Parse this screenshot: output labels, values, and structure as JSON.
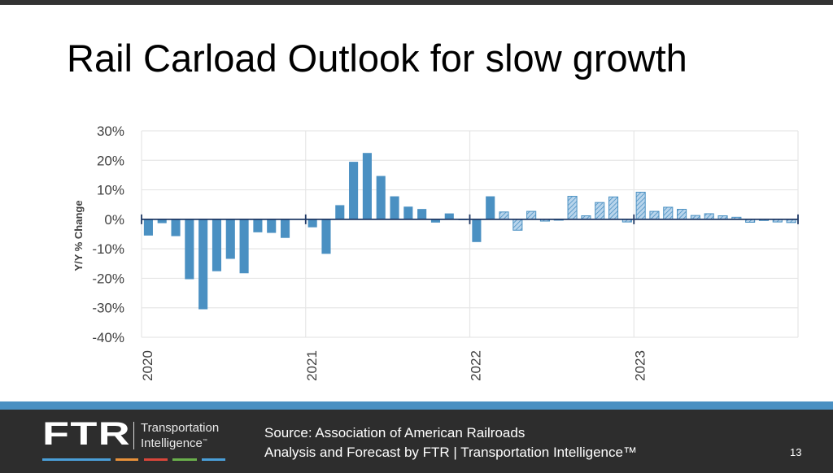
{
  "slide": {
    "title": "Rail Carload Outlook for slow growth",
    "page_number": "13"
  },
  "footer": {
    "logo_main": "FTR",
    "logo_line1": "Transportation",
    "logo_line2": "Intelligence",
    "logo_tm": "™",
    "source_line1": "Source: Association of American Railroads",
    "source_line2": "Analysis and Forecast by FTR | Transportation Intelligence™",
    "accent_colors": [
      "#4a9fd8",
      "#e8913a",
      "#d9463a",
      "#6ab04c",
      "#4a9fd8"
    ]
  },
  "colors": {
    "actual_bar": "#4a90c2",
    "forecast_fill": "#b9d5ec",
    "forecast_stripe": "#4a90c2",
    "axis_line": "#1f3864",
    "grid": "#e6e6e6",
    "tick_text": "#404040"
  },
  "chart_data": {
    "type": "bar",
    "title": "",
    "xlabel": "",
    "ylabel": "Y/Y % Change",
    "ylim": [
      -40,
      30
    ],
    "yticks": [
      30,
      20,
      10,
      0,
      -10,
      -20,
      -30,
      -40
    ],
    "ytick_labels": [
      "30%",
      "20%",
      "10%",
      "0%",
      "-10%",
      "-20%",
      "-30%",
      "-40%"
    ],
    "grid": true,
    "year_labels": [
      "2020",
      "2021",
      "2022",
      "2023"
    ],
    "periods_per_year": 12,
    "series": [
      {
        "name": "Y/Y % Change",
        "values": [
          -5.5,
          -1.3,
          -5.7,
          -20.3,
          -30.5,
          -17.6,
          -13.4,
          -18.3,
          -4.4,
          -4.6,
          -6.3,
          0,
          -2.7,
          -11.7,
          4.8,
          19.5,
          22.5,
          14.7,
          7.8,
          4.3,
          3.5,
          -1.1,
          2.0,
          -0.3,
          -7.7,
          7.8,
          2.5,
          -3.7,
          2.7,
          -0.6,
          -0.3,
          7.8,
          1.2,
          5.7,
          7.6,
          -0.9,
          9.2,
          2.7,
          4.1,
          3.4,
          1.3,
          1.9,
          1.2,
          0.7,
          -1.0,
          -0.4,
          -0.9,
          -1.1
        ],
        "forecast": [
          false,
          false,
          false,
          false,
          false,
          false,
          false,
          false,
          false,
          false,
          false,
          false,
          false,
          false,
          false,
          false,
          false,
          false,
          false,
          false,
          false,
          false,
          false,
          false,
          false,
          false,
          true,
          true,
          true,
          true,
          true,
          true,
          true,
          true,
          true,
          true,
          true,
          true,
          true,
          true,
          true,
          true,
          true,
          true,
          true,
          true,
          true,
          true
        ]
      }
    ],
    "legend": "none"
  }
}
